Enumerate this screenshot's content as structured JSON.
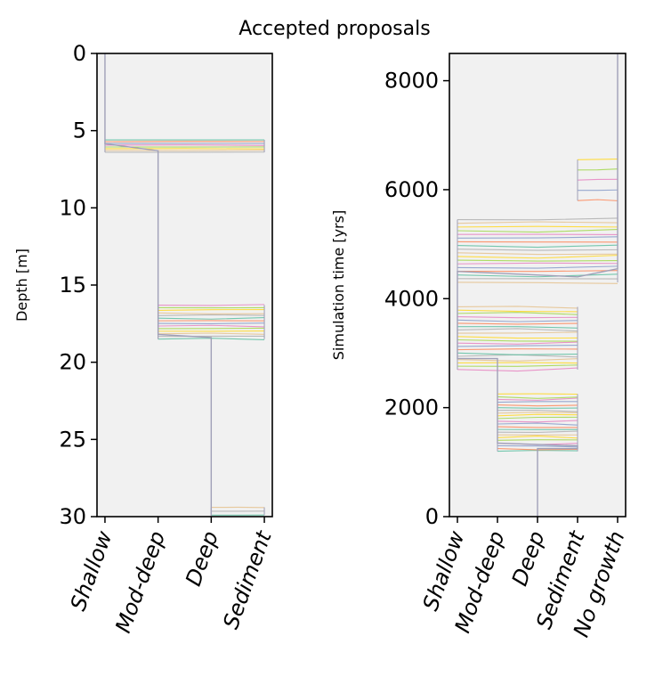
{
  "figure_title": "Accepted proposals",
  "colors": {
    "panel_bg": "#f1f1f1",
    "frame": "#000000",
    "trunk": "#a0a0b8",
    "palette": [
      "#66c2a5",
      "#fc8d62",
      "#8da0cb",
      "#e78ac3",
      "#a6d854",
      "#ffd92f",
      "#e5c494",
      "#b3b3b3"
    ]
  },
  "chart_data": [
    {
      "type": "line",
      "title": "",
      "xlabel": "",
      "ylabel": "Depth [m]",
      "categories": [
        "Shallow",
        "Mod-deep",
        "Deep",
        "Sediment"
      ],
      "ylim": [
        30,
        0
      ],
      "yticks": [
        0,
        5,
        10,
        15,
        20,
        25,
        30
      ],
      "grid": false,
      "trunk": {
        "name": "",
        "points": [
          [
            0,
            0
          ],
          [
            0,
            5.85
          ],
          [
            1,
            6.3
          ],
          [
            1,
            18.2
          ],
          [
            2,
            18.4
          ],
          [
            2,
            30
          ]
        ]
      },
      "proposal_bands": [
        {
          "y_min": 5.6,
          "y_max": 6.4,
          "count": 8,
          "x_min": 0,
          "x_max": 3
        },
        {
          "y_min": 16.3,
          "y_max": 18.5,
          "count": 14,
          "x_min": 1,
          "x_max": 3
        },
        {
          "y_min": 29.4,
          "y_max": 29.9,
          "count": 3,
          "x_min": 2,
          "x_max": 3
        }
      ]
    },
    {
      "type": "line",
      "title": "",
      "xlabel": "",
      "ylabel": "Simulation time [yrs]",
      "categories": [
        "Shallow",
        "Mod-deep",
        "Deep",
        "Sediment",
        "No growth"
      ],
      "ylim": [
        0,
        8500
      ],
      "yticks": [
        0,
        2000,
        4000,
        6000,
        8000
      ],
      "grid": false,
      "trunk": {
        "name": "",
        "points": [
          [
            2,
            0
          ],
          [
            2,
            1250
          ],
          [
            3,
            1250
          ],
          [
            3,
            1300
          ],
          [
            1,
            1350
          ],
          [
            1,
            2900
          ],
          [
            0,
            2900
          ],
          [
            0,
            4500
          ],
          [
            3,
            4400
          ],
          [
            4,
            4550
          ],
          [
            4,
            8500
          ]
        ]
      },
      "proposal_bands": [
        {
          "y_min": 1200,
          "y_max": 2250,
          "count": 22,
          "x_min": 1,
          "x_max": 3
        },
        {
          "y_min": 2700,
          "y_max": 3850,
          "count": 20,
          "x_min": 0,
          "x_max": 3
        },
        {
          "y_min": 4300,
          "y_max": 5450,
          "count": 18,
          "x_min": 0,
          "x_max": 4
        },
        {
          "y_min": 5800,
          "y_max": 6550,
          "count": 5,
          "x_min": 3,
          "x_max": 4
        }
      ]
    }
  ]
}
